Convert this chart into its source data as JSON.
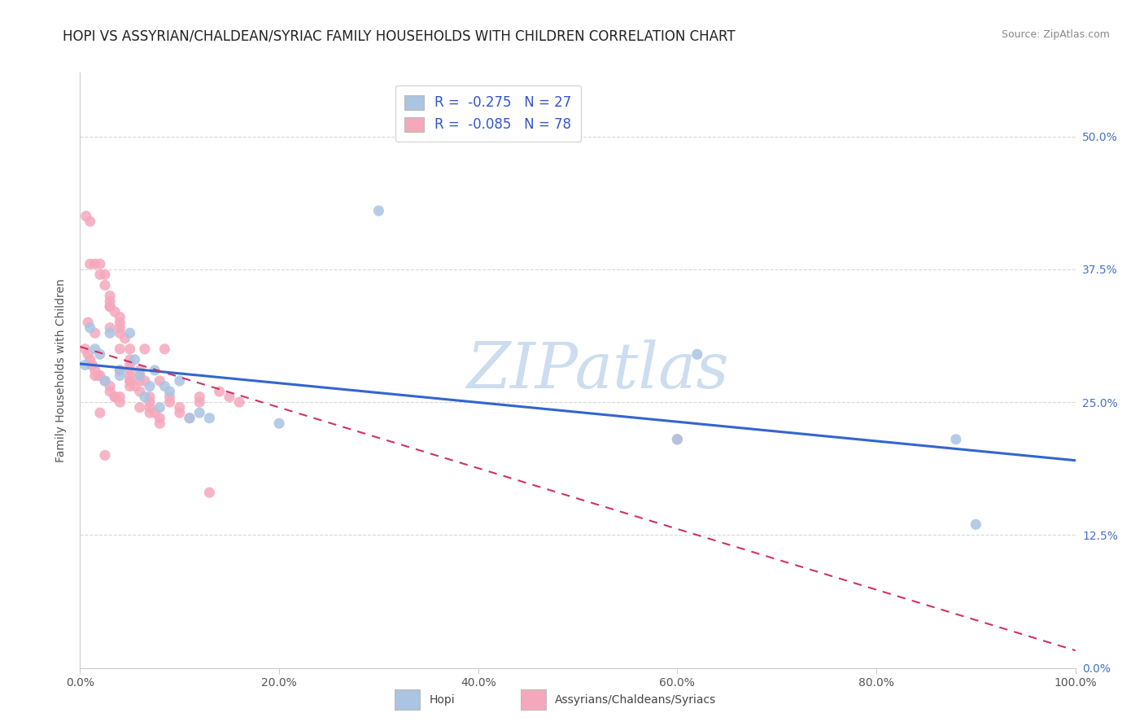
{
  "title": "HOPI VS ASSYRIAN/CHALDEAN/SYRIAC FAMILY HOUSEHOLDS WITH CHILDREN CORRELATION CHART",
  "source": "Source: ZipAtlas.com",
  "ylabel": "Family Households with Children",
  "hopi_R": -0.275,
  "hopi_N": 27,
  "assyrian_R": -0.085,
  "assyrian_N": 78,
  "hopi_color": "#aac4e2",
  "assyrian_color": "#f5a8bc",
  "hopi_line_color": "#3366cc",
  "assyrian_line_color": "#cc3366",
  "xlim": [
    0,
    1.0
  ],
  "ylim": [
    0,
    0.56
  ],
  "yticks": [
    0.0,
    0.125,
    0.25,
    0.375,
    0.5
  ],
  "xticks": [
    0.0,
    0.2,
    0.4,
    0.6,
    0.8,
    1.0
  ],
  "hopi_x": [
    0.005,
    0.01,
    0.015,
    0.02,
    0.025,
    0.03,
    0.04,
    0.04,
    0.05,
    0.055,
    0.06,
    0.065,
    0.07,
    0.075,
    0.08,
    0.085,
    0.09,
    0.1,
    0.11,
    0.12,
    0.13,
    0.2,
    0.3,
    0.6,
    0.62,
    0.88,
    0.9
  ],
  "hopi_y": [
    0.285,
    0.32,
    0.3,
    0.295,
    0.27,
    0.315,
    0.28,
    0.275,
    0.315,
    0.29,
    0.275,
    0.255,
    0.265,
    0.28,
    0.245,
    0.265,
    0.26,
    0.27,
    0.235,
    0.24,
    0.235,
    0.23,
    0.43,
    0.215,
    0.295,
    0.215,
    0.135
  ],
  "assyrian_x": [
    0.005,
    0.008,
    0.01,
    0.01,
    0.012,
    0.015,
    0.015,
    0.018,
    0.02,
    0.02,
    0.02,
    0.025,
    0.025,
    0.025,
    0.03,
    0.03,
    0.03,
    0.03,
    0.03,
    0.03,
    0.035,
    0.035,
    0.04,
    0.04,
    0.04,
    0.04,
    0.04,
    0.04,
    0.04,
    0.045,
    0.05,
    0.05,
    0.05,
    0.05,
    0.05,
    0.05,
    0.055,
    0.06,
    0.06,
    0.06,
    0.06,
    0.065,
    0.07,
    0.07,
    0.07,
    0.07,
    0.075,
    0.08,
    0.08,
    0.08,
    0.085,
    0.09,
    0.09,
    0.1,
    0.1,
    0.11,
    0.12,
    0.12,
    0.13,
    0.14,
    0.15,
    0.16,
    0.006,
    0.008,
    0.01,
    0.012,
    0.015,
    0.015,
    0.02,
    0.025,
    0.03,
    0.035,
    0.04,
    0.05,
    0.05,
    0.06,
    0.065,
    0.6
  ],
  "assyrian_y": [
    0.3,
    0.295,
    0.42,
    0.29,
    0.285,
    0.38,
    0.28,
    0.275,
    0.38,
    0.37,
    0.275,
    0.37,
    0.36,
    0.27,
    0.35,
    0.345,
    0.34,
    0.265,
    0.34,
    0.26,
    0.335,
    0.255,
    0.33,
    0.325,
    0.32,
    0.3,
    0.255,
    0.315,
    0.25,
    0.31,
    0.29,
    0.285,
    0.28,
    0.275,
    0.27,
    0.265,
    0.265,
    0.26,
    0.28,
    0.27,
    0.245,
    0.3,
    0.25,
    0.255,
    0.245,
    0.24,
    0.24,
    0.235,
    0.23,
    0.27,
    0.3,
    0.255,
    0.25,
    0.245,
    0.24,
    0.235,
    0.255,
    0.25,
    0.165,
    0.26,
    0.255,
    0.25,
    0.425,
    0.325,
    0.38,
    0.285,
    0.315,
    0.275,
    0.24,
    0.2,
    0.32,
    0.255,
    0.28,
    0.27,
    0.3,
    0.275,
    0.27,
    0.215
  ],
  "watermark": "ZIPatlas",
  "watermark_color": "#ccddf0",
  "title_fontsize": 12,
  "axis_label_fontsize": 10,
  "tick_fontsize": 10,
  "legend_fontsize": 12,
  "legend_value_color": "#3355cc",
  "legend_text_color": "#333333",
  "right_tick_color": "#4472c4",
  "grid_color": "#d8d8d8",
  "spine_color": "#cccccc"
}
